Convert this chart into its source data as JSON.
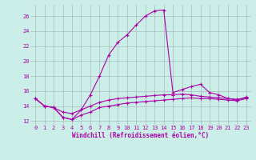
{
  "xlabel": "Windchill (Refroidissement éolien,°C)",
  "bg_color": "#cceee8",
  "line_color": "#aa00aa",
  "grid_color": "#aabbbb",
  "x_data": [
    0,
    1,
    2,
    3,
    4,
    5,
    6,
    7,
    8,
    9,
    10,
    11,
    12,
    13,
    14,
    15,
    16,
    17,
    18,
    19,
    20,
    21,
    22,
    23
  ],
  "line1": [
    15.0,
    14.0,
    13.8,
    12.5,
    12.2,
    12.8,
    13.2,
    13.8,
    14.0,
    14.2,
    14.4,
    14.5,
    14.6,
    14.7,
    14.8,
    14.9,
    15.0,
    15.1,
    15.0,
    15.0,
    14.9,
    14.8,
    14.7,
    15.0
  ],
  "line2": [
    15.0,
    14.0,
    13.8,
    13.2,
    13.0,
    13.5,
    14.0,
    14.5,
    14.8,
    15.0,
    15.1,
    15.2,
    15.3,
    15.4,
    15.5,
    15.5,
    15.6,
    15.5,
    15.3,
    15.2,
    15.1,
    15.0,
    14.9,
    15.1
  ],
  "line3": [
    15.0,
    14.0,
    13.8,
    12.5,
    12.2,
    13.5,
    15.5,
    18.0,
    20.8,
    22.5,
    23.5,
    24.8,
    26.0,
    26.7,
    26.8,
    15.8,
    16.2,
    16.6,
    16.9,
    15.8,
    15.5,
    15.0,
    14.8,
    15.2
  ],
  "ylim": [
    11.5,
    27.5
  ],
  "xlim": [
    -0.5,
    23.5
  ],
  "yticks": [
    12,
    14,
    16,
    18,
    20,
    22,
    24,
    26
  ],
  "xticks": [
    0,
    1,
    2,
    3,
    4,
    5,
    6,
    7,
    8,
    9,
    10,
    11,
    12,
    13,
    14,
    15,
    16,
    17,
    18,
    19,
    20,
    21,
    22,
    23
  ],
  "marker": "+",
  "markersize": 3.5,
  "linewidth": 0.8,
  "tick_fontsize": 5.0,
  "xlabel_fontsize": 5.5
}
